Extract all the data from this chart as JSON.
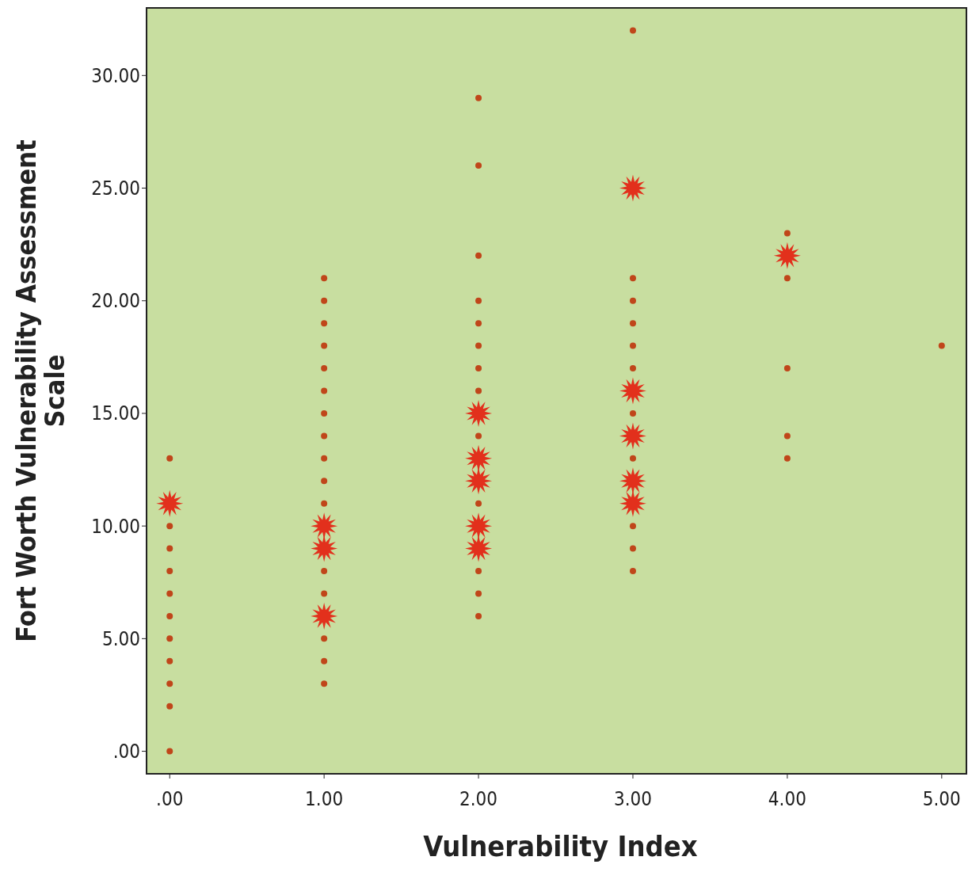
{
  "chart_data": {
    "type": "scatter",
    "xlabel": "Vulnerability Index",
    "ylabel": "Fort Worth Vulnerability Assessment Scale",
    "xlim": [
      -0.15,
      5.16
    ],
    "ylim": [
      -1,
      33
    ],
    "xticks": [
      {
        "value": 0,
        "label": ".00"
      },
      {
        "value": 1,
        "label": "1.00"
      },
      {
        "value": 2,
        "label": "2.00"
      },
      {
        "value": 3,
        "label": "3.00"
      },
      {
        "value": 4,
        "label": "4.00"
      },
      {
        "value": 5,
        "label": "5.00"
      }
    ],
    "yticks": [
      {
        "value": 0,
        "label": ".00"
      },
      {
        "value": 5,
        "label": "5.00"
      },
      {
        "value": 10,
        "label": "10.00"
      },
      {
        "value": 15,
        "label": "15.00"
      },
      {
        "value": 20,
        "label": "20.00"
      },
      {
        "value": 25,
        "label": "25.00"
      },
      {
        "value": 30,
        "label": "30.00"
      }
    ],
    "grid": false,
    "series": [
      {
        "color": "#c0461a",
        "marker": "circle",
        "x": [
          0,
          0,
          0,
          0,
          0,
          0,
          0,
          0,
          0,
          0,
          0,
          1,
          1,
          1,
          1,
          1,
          1,
          1,
          1,
          1,
          1,
          1,
          1,
          1,
          1,
          1,
          1,
          2,
          2,
          2,
          2,
          2,
          2,
          2,
          2,
          2,
          2,
          2,
          2,
          2,
          3,
          3,
          3,
          3,
          3,
          3,
          3,
          3,
          3,
          3,
          3,
          4,
          4,
          4,
          4,
          4,
          5
        ],
        "values": [
          13,
          10,
          9,
          8,
          7,
          6,
          5,
          4,
          3,
          2,
          0,
          21,
          20,
          19,
          18,
          17,
          16,
          15,
          14,
          13,
          12,
          11,
          8,
          7,
          5,
          4,
          3,
          29,
          26,
          22,
          20,
          19,
          18,
          17,
          16,
          14,
          11,
          8,
          7,
          6,
          32,
          21,
          20,
          19,
          18,
          17,
          15,
          13,
          10,
          9,
          8,
          23,
          21,
          17,
          14,
          13,
          18
        ]
      },
      {
        "color": "#e2301c",
        "marker": "star",
        "x": [
          0,
          1,
          1,
          1,
          2,
          2,
          2,
          2,
          2,
          3,
          3,
          3,
          3,
          3,
          4
        ],
        "values": [
          11,
          10,
          9,
          6,
          15,
          13,
          12,
          10,
          9,
          25,
          16,
          14,
          12,
          11,
          22
        ]
      }
    ]
  }
}
